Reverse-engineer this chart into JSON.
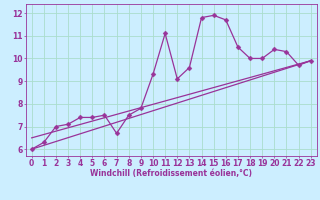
{
  "title": "",
  "xlabel": "Windchill (Refroidissement éolien,°C)",
  "ylabel": "",
  "bg_color": "#cceeff",
  "line_color": "#993399",
  "grid_color": "#aaddcc",
  "xlim": [
    -0.5,
    23.5
  ],
  "ylim": [
    5.7,
    12.4
  ],
  "yticks": [
    6,
    7,
    8,
    9,
    10,
    11,
    12
  ],
  "xticks": [
    0,
    1,
    2,
    3,
    4,
    5,
    6,
    7,
    8,
    9,
    10,
    11,
    12,
    13,
    14,
    15,
    16,
    17,
    18,
    19,
    20,
    21,
    22,
    23
  ],
  "line1_x": [
    0,
    1,
    2,
    3,
    4,
    5,
    6,
    7,
    8,
    9,
    10,
    11,
    12,
    13,
    14,
    15,
    16,
    17,
    18,
    19,
    20,
    21,
    22,
    23
  ],
  "line1_y": [
    6.0,
    6.3,
    7.0,
    7.1,
    7.4,
    7.4,
    7.5,
    6.7,
    7.5,
    7.8,
    9.3,
    11.1,
    9.1,
    9.6,
    11.8,
    11.9,
    11.7,
    10.5,
    10.0,
    10.0,
    10.4,
    10.3,
    9.7,
    9.9
  ],
  "line2_x": [
    0,
    23
  ],
  "line2_y": [
    6.0,
    9.9
  ],
  "line3_x": [
    0,
    23
  ],
  "line3_y": [
    6.5,
    9.9
  ],
  "marker": "D",
  "markersize": 2.5,
  "linewidth": 0.9,
  "tick_fontsize": 5.5,
  "xlabel_fontsize": 5.5
}
